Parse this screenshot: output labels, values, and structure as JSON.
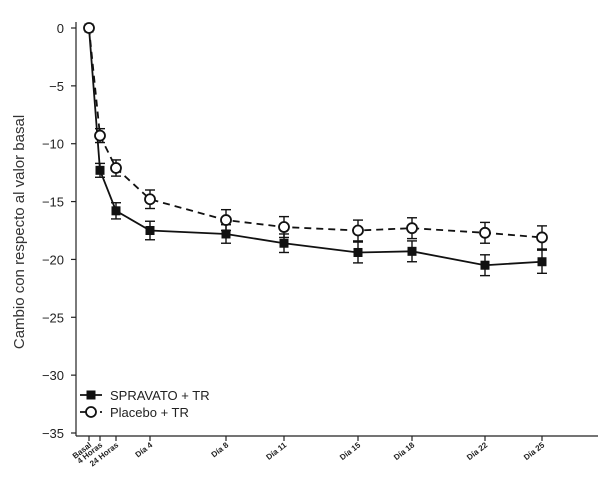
{
  "chart_data": {
    "type": "line",
    "title": "",
    "xlabel": "",
    "ylabel": "Cambio con respecto al valor basal",
    "ylim": [
      -35,
      0
    ],
    "yticks": [
      {
        "value": 0,
        "label": "0"
      },
      {
        "value": -5,
        "label": "−5"
      },
      {
        "value": -10,
        "label": "−10"
      },
      {
        "value": -15,
        "label": "−15"
      },
      {
        "value": -20,
        "label": "−20"
      },
      {
        "value": -25,
        "label": "−25"
      },
      {
        "value": -30,
        "label": "−30"
      },
      {
        "value": -35,
        "label": "−35"
      }
    ],
    "x_day_values": [
      0,
      0.17,
      1,
      4,
      8,
      11,
      15,
      18,
      22,
      25
    ],
    "x_tick_labels": [
      "Basal",
      "4 Horas",
      "24 Horas",
      "Día 4",
      "Día 8",
      "Día 11",
      "Día 15",
      "Día 18",
      "Día 22",
      "Día 25"
    ],
    "series": [
      {
        "name": "SPRAVATO + TR",
        "marker": "filled-square",
        "line_style": "solid",
        "color": "#111111",
        "values": [
          0,
          -12.3,
          -15.8,
          -17.5,
          -17.8,
          -18.6,
          -19.4,
          -19.3,
          -20.5,
          -20.2
        ],
        "error": [
          0,
          0.6,
          0.7,
          0.8,
          0.8,
          0.8,
          0.9,
          0.9,
          0.9,
          1.0
        ]
      },
      {
        "name": "Placebo + TR",
        "marker": "open-circle",
        "line_style": "dashed",
        "color": "#111111",
        "values": [
          0,
          -9.3,
          -12.1,
          -14.8,
          -16.6,
          -17.2,
          -17.5,
          -17.3,
          -17.7,
          -18.1
        ],
        "error": [
          0,
          0.6,
          0.7,
          0.8,
          0.9,
          0.9,
          0.9,
          0.9,
          0.9,
          1.0
        ]
      }
    ],
    "legend_position": "bottom-left",
    "grid": false
  }
}
